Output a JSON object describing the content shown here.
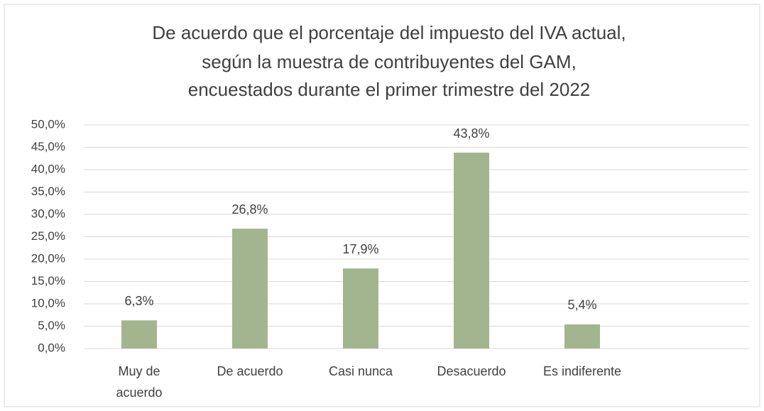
{
  "chart_data": {
    "type": "bar",
    "title": [
      "De acuerdo que el porcentaje del impuesto del IVA actual,",
      "según la muestra de contribuyentes del GAM,",
      "encuestados durante el primer trimestre del 2022"
    ],
    "categories": [
      "Muy de acuerdo",
      "De acuerdo",
      "Casi nunca",
      "Desacuerdo",
      "Es indiferente"
    ],
    "values": [
      6.3,
      26.8,
      17.9,
      43.8,
      5.4
    ],
    "value_labels": [
      "6,3%",
      "26,8%",
      "17,9%",
      "43,8%",
      "5,4%"
    ],
    "color": "#a3b58f",
    "ylim": [
      0,
      50
    ],
    "yticks": [
      {
        "value": 0,
        "label": "0,0%"
      },
      {
        "value": 5,
        "label": "5,0%"
      },
      {
        "value": 10,
        "label": "10,0%"
      },
      {
        "value": 15,
        "label": "15,0%"
      },
      {
        "value": 20,
        "label": "20,0%"
      },
      {
        "value": 25,
        "label": "25,0%"
      },
      {
        "value": 30,
        "label": "30,0%"
      },
      {
        "value": 35,
        "label": "35,0%"
      },
      {
        "value": 40,
        "label": "40,0%"
      },
      {
        "value": 45,
        "label": "45,0%"
      },
      {
        "value": 50,
        "label": "50,0%"
      }
    ],
    "grid": true
  }
}
